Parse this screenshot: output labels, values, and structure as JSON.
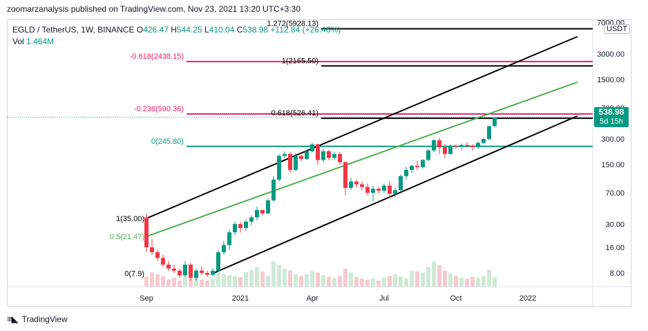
{
  "header": {
    "publisher_line": "zoomarzanalysis published on TradingView.com, Nov 23, 2021 13:20 UTC+3:30"
  },
  "legend": {
    "symbol": "EGLD / TetherUS, 1W, BINANCE",
    "open_label": "O",
    "open": "426.47",
    "high_label": "H",
    "high": "544.25",
    "low_label": "L",
    "low": "410.04",
    "close_label": "C",
    "close": "538.98",
    "change": "+112.84 (+26.46%)",
    "vol_label": "Vol",
    "vol": "1.464M"
  },
  "price_tag": {
    "price": "538.98",
    "countdown": "5d 15h"
  },
  "currency": "USDT",
  "footer": {
    "brand": "TradingView"
  },
  "colors": {
    "up": "#089981",
    "down": "#f23645",
    "fib_pink": "#e91e63",
    "fib_teal": "#089981",
    "channel": "#000000",
    "midline": "#4caf50",
    "vol_up": "#cfe9d6",
    "vol_down": "#f5cbd0"
  },
  "chart_data": {
    "type": "candlestick",
    "title": "EGLD / TetherUS, 1W, BINANCE",
    "scale": "log",
    "ylim": [
      5.5,
      7500
    ],
    "y_ticks": [
      7000,
      3000,
      1500,
      700,
      300,
      150,
      70,
      30,
      16,
      8
    ],
    "x_ticks": [
      {
        "label": "Sep",
        "week": 0
      },
      {
        "label": "2021",
        "week": 17
      },
      {
        "label": "Apr",
        "week": 30
      },
      {
        "label": "Jul",
        "week": 43
      },
      {
        "label": "Oct",
        "week": 56
      },
      {
        "label": "2022",
        "week": 69
      }
    ],
    "candles": [
      [
        36,
        40,
        14,
        16
      ],
      [
        16,
        20,
        13,
        14
      ],
      [
        14,
        15,
        11,
        12
      ],
      [
        12,
        13,
        9.5,
        10
      ],
      [
        10,
        11,
        8.5,
        9
      ],
      [
        9,
        10,
        8,
        8.5
      ],
      [
        8.5,
        9,
        7,
        7.5
      ],
      [
        7.5,
        11,
        7.2,
        10
      ],
      [
        10,
        10.5,
        6.5,
        7
      ],
      [
        7,
        9,
        6.5,
        8.5
      ],
      [
        8.5,
        9.5,
        7.5,
        8
      ],
      [
        8,
        8.5,
        7.2,
        7.6
      ],
      [
        7.6,
        9,
        7.3,
        8.5
      ],
      [
        8.5,
        15,
        8.3,
        14
      ],
      [
        14,
        19,
        13,
        17
      ],
      [
        17,
        26,
        15,
        24
      ],
      [
        24,
        32,
        22,
        30
      ],
      [
        30,
        32,
        24,
        27
      ],
      [
        27,
        34,
        25,
        32
      ],
      [
        32,
        38,
        29,
        36
      ],
      [
        36,
        48,
        33,
        44
      ],
      [
        44,
        44,
        38,
        40
      ],
      [
        40,
        60,
        39,
        57
      ],
      [
        57,
        110,
        55,
        100
      ],
      [
        100,
        200,
        95,
        190
      ],
      [
        190,
        215,
        180,
        200
      ],
      [
        200,
        210,
        120,
        130
      ],
      [
        130,
        205,
        125,
        190
      ],
      [
        190,
        195,
        165,
        175
      ],
      [
        175,
        225,
        170,
        215
      ],
      [
        215,
        270,
        210,
        260
      ],
      [
        260,
        265,
        150,
        170
      ],
      [
        170,
        230,
        160,
        215
      ],
      [
        215,
        225,
        170,
        180
      ],
      [
        180,
        210,
        170,
        200
      ],
      [
        200,
        210,
        150,
        160
      ],
      [
        160,
        165,
        65,
        80
      ],
      [
        80,
        105,
        75,
        95
      ],
      [
        95,
        100,
        80,
        88
      ],
      [
        88,
        95,
        75,
        82
      ],
      [
        82,
        90,
        65,
        70
      ],
      [
        70,
        85,
        55,
        78
      ],
      [
        78,
        82,
        68,
        74
      ],
      [
        74,
        90,
        70,
        85
      ],
      [
        85,
        95,
        60,
        68
      ],
      [
        68,
        80,
        62,
        75
      ],
      [
        75,
        115,
        72,
        110
      ],
      [
        110,
        140,
        100,
        130
      ],
      [
        130,
        150,
        120,
        145
      ],
      [
        145,
        165,
        130,
        140
      ],
      [
        140,
        175,
        135,
        170
      ],
      [
        170,
        230,
        165,
        220
      ],
      [
        220,
        300,
        210,
        290
      ],
      [
        290,
        310,
        200,
        240
      ],
      [
        240,
        260,
        180,
        200
      ],
      [
        200,
        260,
        195,
        250
      ],
      [
        250,
        260,
        230,
        245
      ],
      [
        245,
        265,
        225,
        255
      ],
      [
        255,
        275,
        240,
        250
      ],
      [
        250,
        260,
        220,
        240
      ],
      [
        240,
        280,
        230,
        270
      ],
      [
        270,
        310,
        260,
        300
      ],
      [
        300,
        430,
        290,
        425
      ],
      [
        426.47,
        544.25,
        410.04,
        538.98
      ]
    ],
    "volumes": [
      55,
      80,
      70,
      60,
      40,
      50,
      35,
      60,
      45,
      55,
      40,
      35,
      45,
      90,
      70,
      65,
      60,
      55,
      80,
      95,
      110,
      85,
      60,
      140,
      120,
      100,
      90,
      70,
      60,
      70,
      90,
      80,
      65,
      55,
      50,
      60,
      100,
      80,
      55,
      45,
      40,
      45,
      35,
      50,
      60,
      70,
      55,
      45,
      90,
      85,
      80,
      110,
      140,
      120,
      90,
      75,
      60,
      50,
      45,
      55,
      50,
      60,
      95,
      55
    ],
    "fib_levels": [
      {
        "label": "1.272(5928.13)",
        "price": 5928.13,
        "color": "#000000",
        "label_side": "right"
      },
      {
        "label": "-0.618(2438.15)",
        "price": 2438.15,
        "color": "#e91e63",
        "label_side": "left"
      },
      {
        "label": "1(2165.50)",
        "price": 2165.5,
        "color": "#000000",
        "label_side": "right"
      },
      {
        "label": "-0.236(590.36)",
        "price": 590.36,
        "color": "#e91e63",
        "label_side": "left"
      },
      {
        "label": "0.618(526.41)",
        "price": 526.41,
        "color": "#000000",
        "label_side": "right"
      },
      {
        "label": "0(245.80)",
        "price": 245.8,
        "color": "#089981",
        "label_side": "left"
      },
      {
        "label": "1(35.00)",
        "price": 35.0,
        "color": "#000000",
        "label_side": "left"
      },
      {
        "label": "0.5(21.47)",
        "price": 21.47,
        "color": "#4caf50",
        "label_side": "left"
      },
      {
        "label": "0(7.9)",
        "price": 7.9,
        "color": "#000000",
        "label_side": "left"
      }
    ],
    "channel": {
      "upper": {
        "from_week": 0,
        "from_price": 35.0,
        "to_week": 78,
        "to_price": 4800
      },
      "mid": {
        "from_week": 0,
        "from_price": 21.47,
        "to_week": 78,
        "to_price": 1400
      },
      "lower": {
        "from_week": 12,
        "from_price": 7.9,
        "to_week": 78,
        "to_price": 560
      }
    }
  }
}
